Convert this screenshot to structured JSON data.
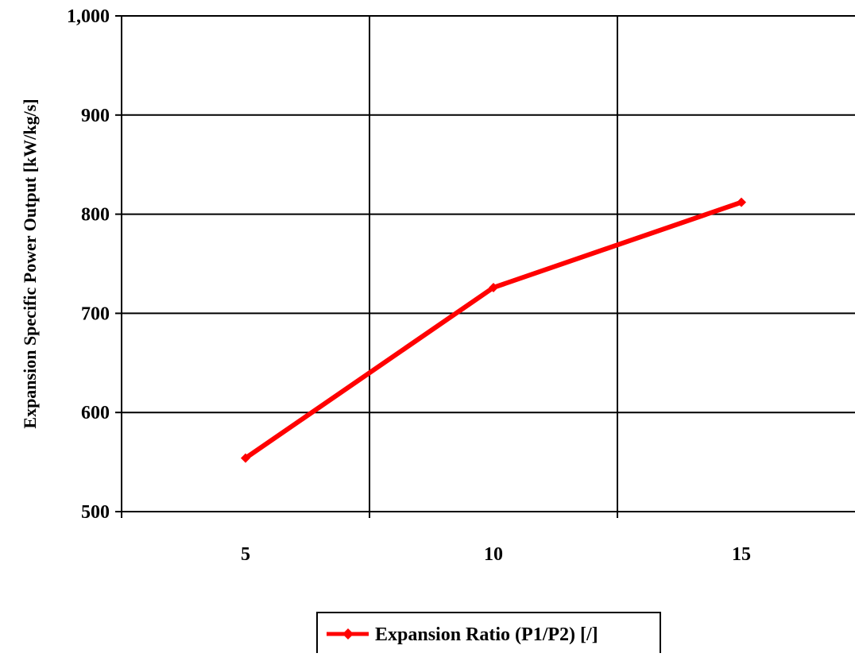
{
  "chart_data": {
    "type": "line",
    "title": "",
    "xlabel": "",
    "ylabel": "Expansion Specific Power Output [kW/kg/s]",
    "categories": [
      "5",
      "10",
      "15"
    ],
    "series": [
      {
        "name": "Expansion Ratio (P1/P2) [/]",
        "values": [
          554,
          726,
          812
        ],
        "color": "#ff0000",
        "marker": "diamond"
      }
    ],
    "ylim": [
      500,
      1000
    ],
    "yticks": [
      500,
      600,
      700,
      800,
      900,
      1000
    ],
    "ytick_labels": [
      "500",
      "600",
      "700",
      "800",
      "900",
      "1,000"
    ],
    "grid": true,
    "legend_position": "bottom-center"
  }
}
